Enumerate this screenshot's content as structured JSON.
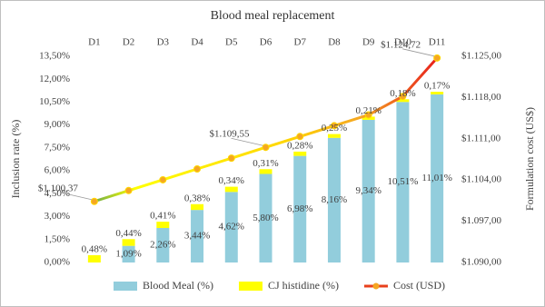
{
  "chart_data": {
    "type": "bar",
    "stacked": true,
    "title": "Blood meal replacement",
    "y_label": "Inclusion rate (%)",
    "y2_label": "Formulation cost (US$)",
    "categories": [
      "D1",
      "D2",
      "D3",
      "D4",
      "D5",
      "D6",
      "D7",
      "D8",
      "D9",
      "D10",
      "D11"
    ],
    "series": [
      {
        "name": "Blood Meal (%)",
        "color": "#92cddc",
        "values": [
          0,
          1.09,
          2.26,
          3.44,
          4.62,
          5.8,
          6.98,
          8.16,
          9.34,
          10.51,
          11.01
        ],
        "value_labels": [
          null,
          "1,09%",
          "2,26%",
          "3,44%",
          "4,62%",
          "5,80%",
          "6,98%",
          "8,16%",
          "9,34%",
          "10,51%",
          "11,01%"
        ]
      },
      {
        "name": "CJ histidine (%)",
        "color": "#ffff00",
        "values": [
          0.48,
          0.44,
          0.41,
          0.38,
          0.34,
          0.31,
          0.28,
          0.25,
          0.21,
          0.18,
          0.17
        ],
        "value_labels": [
          "0,48%",
          "0,44%",
          "0,41%",
          "0,38%",
          "0,34%",
          "0,31%",
          "0,28%",
          "0,25%",
          "0,21%",
          "0,18%",
          "0,17%"
        ]
      },
      {
        "name": "Cost (USD)",
        "type": "line",
        "axis": "y2",
        "color": "#e8401c",
        "marker_color": "#f5a623",
        "values": [
          1100.37,
          1102.21,
          1104.04,
          1105.88,
          1107.71,
          1109.55,
          1111.39,
          1113.22,
          1115.06,
          1118.2,
          1124.72
        ],
        "value_labels": [
          "$1.100,37",
          null,
          null,
          null,
          null,
          "$1.109,55",
          null,
          null,
          null,
          null,
          "$1.124,72"
        ]
      }
    ],
    "ylim": [
      0,
      13.5
    ],
    "yticks": [
      {
        "value": 0,
        "label": "0,00%"
      },
      {
        "value": 1.5,
        "label": "1,50%"
      },
      {
        "value": 3,
        "label": "3,00%"
      },
      {
        "value": 4.5,
        "label": "4,50%"
      },
      {
        "value": 6,
        "label": "6,00%"
      },
      {
        "value": 7.5,
        "label": "7,50%"
      },
      {
        "value": 9,
        "label": "9,00%"
      },
      {
        "value": 10.5,
        "label": "10,50%"
      },
      {
        "value": 12,
        "label": "12,00%"
      },
      {
        "value": 13.5,
        "label": "13,50%"
      }
    ],
    "y2lim": [
      1090,
      1125
    ],
    "y2ticks": [
      {
        "value": 1090,
        "label": "$1.090,00"
      },
      {
        "value": 1097,
        "label": "$1.097,00"
      },
      {
        "value": 1104,
        "label": "$1.104,00"
      },
      {
        "value": 1111,
        "label": "$1.111,00"
      },
      {
        "value": 1118,
        "label": "$1.118,00"
      },
      {
        "value": 1125,
        "label": "$1.125,00"
      }
    ],
    "grid": false,
    "legend": "bottom"
  }
}
